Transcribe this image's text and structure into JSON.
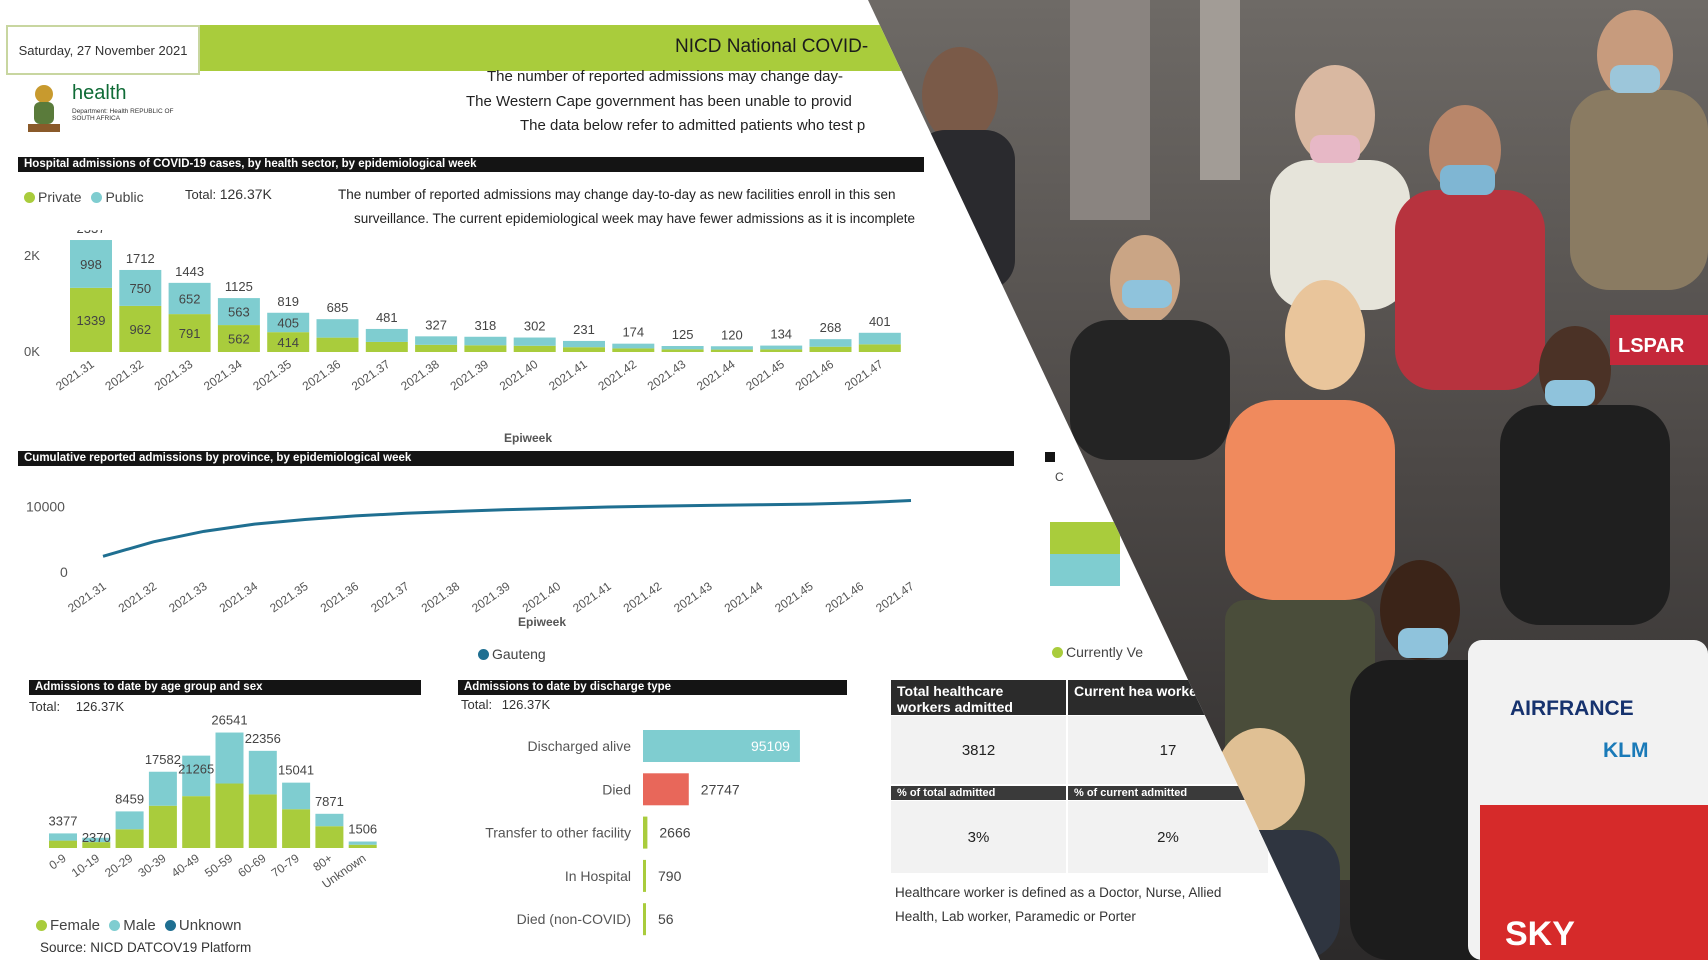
{
  "header": {
    "date": "Saturday, 27 November 2021",
    "title": "NICD National COVID-",
    "logo_text": "health",
    "logo_sub": "Department: Health REPUBLIC OF SOUTH AFRICA",
    "notes": [
      "The number of reported admissions may change day-",
      "The Western Cape government has been unable to provid",
      "The data below refer to admitted patients who test p"
    ]
  },
  "sector_section": {
    "heading": "Hospital admissions of COVID-19 cases, by health sector, by epidemiological week",
    "legend": [
      {
        "label": "Private",
        "color": "#a9cc3c"
      },
      {
        "label": "Public",
        "color": "#7fcdd0"
      }
    ],
    "total_label": "Total:",
    "total_value": "126.37K",
    "note_line1": "The number of reported admissions may change day-to-day as new facilities enroll in this sen",
    "note_line2": "surveillance. The current epidemiological week may have fewer admissions as it is incomplete",
    "xlabel": "Epiweek"
  },
  "cumulative_section": {
    "heading": "Cumulative reported admissions by province, by epidemiological week",
    "xlabel": "Epiweek",
    "legend": [
      {
        "label": "Gauteng",
        "color": "#1f6f91"
      }
    ]
  },
  "age_section": {
    "heading": "Admissions to date by age group and sex",
    "total_label": "Total:",
    "total_value": "126.37K",
    "legend": [
      {
        "label": "Female",
        "color": "#a9cc3c"
      },
      {
        "label": "Male",
        "color": "#7fcdd0"
      },
      {
        "label": "Unknown",
        "color": "#1f6f91"
      }
    ],
    "source": "Source: NICD DATCOV19 Platform"
  },
  "discharge_section": {
    "heading": "Admissions to date by discharge type",
    "total_label": "Total:",
    "total_value": "126.37K"
  },
  "hcw_table": {
    "col1_head": "Total healthcare workers admitted",
    "col2_head": "Current hea workers adm",
    "col1_value": "3812",
    "col2_value": "17",
    "sub1": "% of total admitted",
    "sub2": "% of current admitted",
    "pct1": "3%",
    "pct2": "2%",
    "footnote_line1": "Healthcare worker is defined as a Doctor, Nurse, Allied",
    "footnote_line2": "Health,  Lab worker, Paramedic or Porter"
  },
  "right_fragment": {
    "legend_label": "Currently Ve",
    "head_letter": "C"
  },
  "photo": {
    "sign_text1": "AIRFRANCE",
    "sign_text2": "KLM",
    "sign_text3": "SKY",
    "trolley_text": "LSPAR"
  },
  "colors": {
    "private": "#a9cc3c",
    "public": "#7fcdd0",
    "line": "#1f6f91",
    "died": "#e8675a",
    "discharged": "#7fcdd0",
    "other": "#a9cc3c"
  },
  "chart_data": [
    {
      "type": "bar",
      "stacked": true,
      "title": "Hospital admissions of COVID-19 cases, by health sector, by epidemiological week",
      "xlabel": "Epiweek",
      "ylabel": "",
      "categories": [
        "2021.31",
        "2021.32",
        "2021.33",
        "2021.34",
        "2021.35",
        "2021.36",
        "2021.37",
        "2021.38",
        "2021.39",
        "2021.40",
        "2021.41",
        "2021.42",
        "2021.43",
        "2021.44",
        "2021.45",
        "2021.46",
        "2021.47"
      ],
      "totals": [
        2337,
        1712,
        1443,
        1125,
        819,
        685,
        481,
        327,
        318,
        302,
        231,
        174,
        125,
        120,
        134,
        268,
        401
      ],
      "series": [
        {
          "name": "Private",
          "values": [
            1339,
            962,
            791,
            562,
            414,
            300,
            210,
            150,
            140,
            130,
            100,
            75,
            55,
            50,
            55,
            110,
            160
          ],
          "labels": [
            "1339",
            "962",
            "791",
            "562",
            "414",
            "",
            "",
            "",
            "",
            "",
            "",
            "",
            "",
            "",
            "",
            "",
            ""
          ]
        },
        {
          "name": "Public",
          "values": [
            998,
            750,
            652,
            563,
            405,
            385,
            271,
            177,
            178,
            172,
            131,
            99,
            70,
            70,
            79,
            158,
            241
          ],
          "labels": [
            "998",
            "750",
            "652",
            "563",
            "405",
            "",
            "",
            "",
            "",
            "",
            "",
            "",
            "",
            "",
            "",
            "",
            ""
          ]
        }
      ],
      "yticks": [
        "0K",
        "2K"
      ],
      "ylim": [
        0,
        2400
      ],
      "legend": "top-left"
    },
    {
      "type": "line",
      "title": "Cumulative reported admissions by province, by epidemiological week",
      "xlabel": "Epiweek",
      "categories": [
        "2021.31",
        "2021.32",
        "2021.33",
        "2021.34",
        "2021.35",
        "2021.36",
        "2021.37",
        "2021.38",
        "2021.39",
        "2021.40",
        "2021.41",
        "2021.42",
        "2021.43",
        "2021.44",
        "2021.45",
        "2021.46",
        "2021.47"
      ],
      "series": [
        {
          "name": "Gauteng",
          "values": [
            2400,
            4600,
            6200,
            7300,
            8000,
            8550,
            8950,
            9250,
            9500,
            9700,
            9900,
            10050,
            10150,
            10250,
            10350,
            10550,
            10900
          ]
        }
      ],
      "yticks": [
        "0",
        "10000"
      ],
      "ylim": [
        0,
        12500
      ],
      "legend": "bottom"
    },
    {
      "type": "bar",
      "stacked": true,
      "title": "Admissions to date by age group and sex",
      "categories": [
        "0-9",
        "10-19",
        "20-29",
        "30-39",
        "40-49",
        "50-59",
        "60-69",
        "70-79",
        "80+",
        "Unknown"
      ],
      "totals": [
        3377,
        2370,
        8459,
        17582,
        21265,
        26541,
        22356,
        15041,
        7871,
        1506
      ],
      "series": [
        {
          "name": "Female",
          "values": [
            1700,
            1350,
            4300,
            9700,
            11900,
            14800,
            12300,
            8900,
            5000,
            750
          ]
        },
        {
          "name": "Male",
          "values": [
            1650,
            1000,
            4100,
            7800,
            9300,
            11700,
            10000,
            6100,
            2850,
            740
          ]
        },
        {
          "name": "Unknown",
          "values": [
            27,
            20,
            59,
            82,
            65,
            41,
            56,
            41,
            21,
            16
          ]
        }
      ],
      "ylim": [
        0,
        28000
      ],
      "legend": "bottom-left"
    },
    {
      "type": "bar",
      "orientation": "horizontal",
      "title": "Admissions to date by discharge type",
      "categories": [
        "Discharged alive",
        "Died",
        "Transfer to other facility",
        "In Hospital",
        "Died (non-COVID)"
      ],
      "values": [
        95109,
        27747,
        2666,
        790,
        56
      ],
      "xlim": [
        0,
        100000
      ]
    }
  ]
}
